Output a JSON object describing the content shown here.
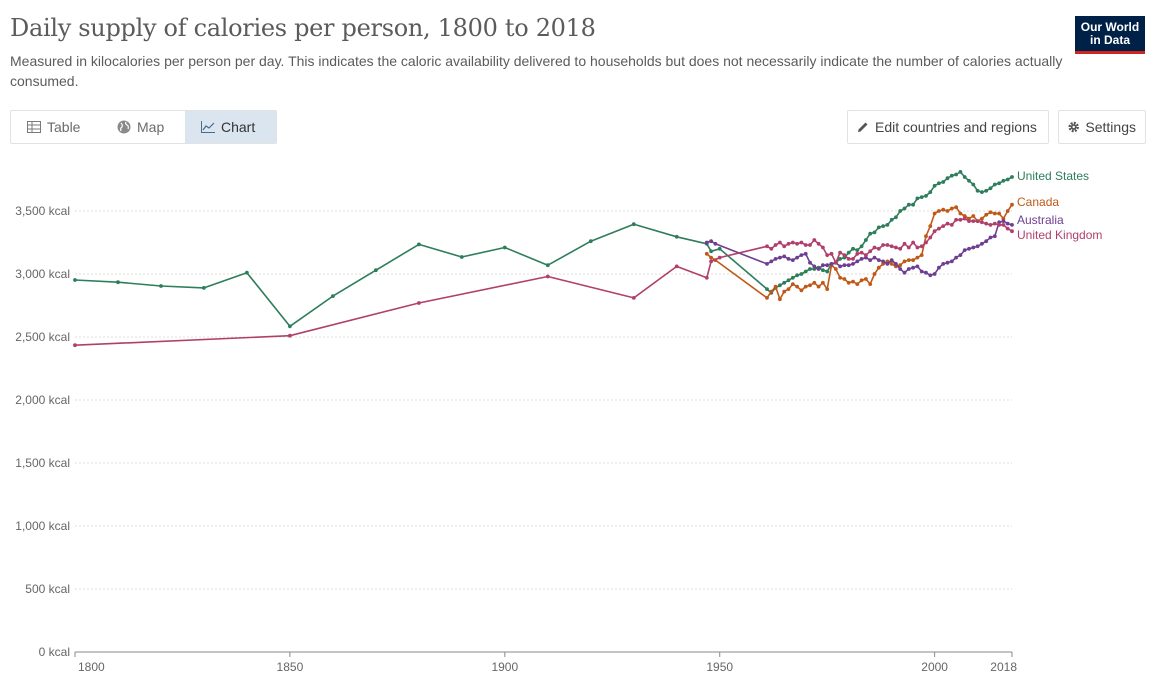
{
  "header": {
    "title": "Daily supply of calories per person, 1800 to 2018",
    "subtitle": "Measured in kilocalories per person per day. This indicates the caloric availability delivered to households but does not necessarily indicate the number of calories actually consumed.",
    "logo_line1": "Our World",
    "logo_line2": "in Data"
  },
  "tabs": [
    {
      "label": "Table",
      "icon": "table-icon"
    },
    {
      "label": "Map",
      "icon": "globe-icon"
    },
    {
      "label": "Chart",
      "icon": "line-chart-icon",
      "active": true
    }
  ],
  "toolbar": {
    "edit_label": "Edit countries and regions",
    "settings_label": "Settings"
  },
  "chart_data": {
    "type": "line",
    "title": "Daily supply of calories per person, 1800 to 2018",
    "xlabel": "",
    "ylabel": "",
    "xlim": [
      1800,
      2018
    ],
    "ylim": [
      0,
      3800
    ],
    "y_ticks": [
      0,
      500,
      1000,
      1500,
      2000,
      2500,
      3000,
      3500
    ],
    "y_tick_labels": [
      "0 kcal",
      "500 kcal",
      "1,000 kcal",
      "1,500 kcal",
      "2,000 kcal",
      "2,500 kcal",
      "3,000 kcal",
      "3,500 kcal"
    ],
    "x_ticks": [
      1800,
      1850,
      1900,
      1950,
      2000,
      2018
    ],
    "x_tick_labels": [
      "1800",
      "1850",
      "1900",
      "1950",
      "2000",
      "2018"
    ],
    "grid": "horizontal dotted",
    "legend": "right, line-end labels",
    "series": [
      {
        "name": "United States",
        "color": "#2e7d5b",
        "points": [
          [
            1800,
            2952
          ],
          [
            1810,
            2935
          ],
          [
            1820,
            2905
          ],
          [
            1830,
            2890
          ],
          [
            1840,
            3010
          ],
          [
            1850,
            2585
          ],
          [
            1860,
            2825
          ],
          [
            1870,
            3030
          ],
          [
            1880,
            3235
          ],
          [
            1890,
            3135
          ],
          [
            1900,
            3210
          ],
          [
            1910,
            3070
          ],
          [
            1920,
            3260
          ],
          [
            1930,
            3395
          ],
          [
            1940,
            3295
          ],
          [
            1947,
            3240
          ],
          [
            1948,
            3180
          ],
          [
            1950,
            3200
          ],
          [
            1961,
            2880
          ],
          [
            1962,
            2850
          ],
          [
            1963,
            2890
          ],
          [
            1964,
            2910
          ],
          [
            1965,
            2930
          ],
          [
            1966,
            2950
          ],
          [
            1967,
            2970
          ],
          [
            1968,
            2990
          ],
          [
            1969,
            3000
          ],
          [
            1970,
            3020
          ],
          [
            1971,
            3040
          ],
          [
            1972,
            3040
          ],
          [
            1973,
            3050
          ],
          [
            1974,
            3030
          ],
          [
            1975,
            3020
          ],
          [
            1976,
            3080
          ],
          [
            1977,
            3090
          ],
          [
            1978,
            3120
          ],
          [
            1979,
            3130
          ],
          [
            1980,
            3170
          ],
          [
            1981,
            3200
          ],
          [
            1982,
            3190
          ],
          [
            1983,
            3220
          ],
          [
            1984,
            3270
          ],
          [
            1985,
            3320
          ],
          [
            1986,
            3330
          ],
          [
            1987,
            3370
          ],
          [
            1988,
            3380
          ],
          [
            1989,
            3390
          ],
          [
            1990,
            3430
          ],
          [
            1991,
            3450
          ],
          [
            1992,
            3500
          ],
          [
            1993,
            3520
          ],
          [
            1994,
            3550
          ],
          [
            1995,
            3550
          ],
          [
            1996,
            3600
          ],
          [
            1997,
            3610
          ],
          [
            1998,
            3620
          ],
          [
            1999,
            3650
          ],
          [
            2000,
            3700
          ],
          [
            2001,
            3720
          ],
          [
            2002,
            3730
          ],
          [
            2003,
            3760
          ],
          [
            2004,
            3780
          ],
          [
            2005,
            3790
          ],
          [
            2006,
            3810
          ],
          [
            2007,
            3770
          ],
          [
            2008,
            3740
          ],
          [
            2009,
            3710
          ],
          [
            2010,
            3660
          ],
          [
            2011,
            3650
          ],
          [
            2012,
            3660
          ],
          [
            2013,
            3680
          ],
          [
            2014,
            3710
          ],
          [
            2015,
            3720
          ],
          [
            2016,
            3740
          ],
          [
            2017,
            3750
          ],
          [
            2018,
            3770
          ]
        ]
      },
      {
        "name": "Canada",
        "color": "#c05917",
        "points": [
          [
            1947,
            3160
          ],
          [
            1948,
            3130
          ],
          [
            1949,
            3110
          ],
          [
            1961,
            2810
          ],
          [
            1962,
            2860
          ],
          [
            1963,
            2900
          ],
          [
            1964,
            2800
          ],
          [
            1965,
            2860
          ],
          [
            1966,
            2880
          ],
          [
            1967,
            2920
          ],
          [
            1968,
            2900
          ],
          [
            1969,
            2870
          ],
          [
            1970,
            2900
          ],
          [
            1971,
            2910
          ],
          [
            1972,
            2930
          ],
          [
            1973,
            2900
          ],
          [
            1974,
            2930
          ],
          [
            1975,
            2880
          ],
          [
            1976,
            3070
          ],
          [
            1977,
            3040
          ],
          [
            1978,
            2970
          ],
          [
            1979,
            2960
          ],
          [
            1980,
            2930
          ],
          [
            1981,
            2940
          ],
          [
            1982,
            2920
          ],
          [
            1983,
            2950
          ],
          [
            1984,
            2960
          ],
          [
            1985,
            2920
          ],
          [
            1986,
            3000
          ],
          [
            1987,
            3050
          ],
          [
            1988,
            3080
          ],
          [
            1989,
            3100
          ],
          [
            1990,
            3080
          ],
          [
            1991,
            3060
          ],
          [
            1992,
            3070
          ],
          [
            1993,
            3100
          ],
          [
            1994,
            3110
          ],
          [
            1995,
            3110
          ],
          [
            1996,
            3130
          ],
          [
            1997,
            3150
          ],
          [
            1998,
            3300
          ],
          [
            1999,
            3380
          ],
          [
            2000,
            3480
          ],
          [
            2001,
            3500
          ],
          [
            2002,
            3510
          ],
          [
            2003,
            3500
          ],
          [
            2004,
            3520
          ],
          [
            2005,
            3530
          ],
          [
            2006,
            3480
          ],
          [
            2007,
            3460
          ],
          [
            2008,
            3440
          ],
          [
            2009,
            3460
          ],
          [
            2010,
            3420
          ],
          [
            2011,
            3440
          ],
          [
            2012,
            3470
          ],
          [
            2013,
            3490
          ],
          [
            2014,
            3480
          ],
          [
            2015,
            3480
          ],
          [
            2016,
            3440
          ],
          [
            2017,
            3500
          ],
          [
            2018,
            3550
          ]
        ]
      },
      {
        "name": "Australia",
        "color": "#6d3e91",
        "points": [
          [
            1947,
            3250
          ],
          [
            1948,
            3260
          ],
          [
            1949,
            3240
          ],
          [
            1961,
            3080
          ],
          [
            1962,
            3100
          ],
          [
            1963,
            3120
          ],
          [
            1964,
            3130
          ],
          [
            1965,
            3140
          ],
          [
            1966,
            3120
          ],
          [
            1967,
            3110
          ],
          [
            1968,
            3130
          ],
          [
            1969,
            3150
          ],
          [
            1970,
            3160
          ],
          [
            1971,
            3090
          ],
          [
            1972,
            3060
          ],
          [
            1973,
            3040
          ],
          [
            1974,
            3070
          ],
          [
            1975,
            3070
          ],
          [
            1976,
            3080
          ],
          [
            1977,
            3090
          ],
          [
            1978,
            3060
          ],
          [
            1979,
            3070
          ],
          [
            1980,
            3070
          ],
          [
            1981,
            3080
          ],
          [
            1982,
            3100
          ],
          [
            1983,
            3120
          ],
          [
            1984,
            3130
          ],
          [
            1985,
            3110
          ],
          [
            1986,
            3130
          ],
          [
            1987,
            3110
          ],
          [
            1988,
            3100
          ],
          [
            1989,
            3080
          ],
          [
            1990,
            3110
          ],
          [
            1991,
            3080
          ],
          [
            1992,
            3040
          ],
          [
            1993,
            3010
          ],
          [
            1994,
            3040
          ],
          [
            1995,
            3050
          ],
          [
            1996,
            3060
          ],
          [
            1997,
            3020
          ],
          [
            1998,
            3010
          ],
          [
            1999,
            2990
          ],
          [
            2000,
            3000
          ],
          [
            2001,
            3050
          ],
          [
            2002,
            3080
          ],
          [
            2003,
            3090
          ],
          [
            2004,
            3100
          ],
          [
            2005,
            3130
          ],
          [
            2006,
            3150
          ],
          [
            2007,
            3190
          ],
          [
            2008,
            3200
          ],
          [
            2009,
            3210
          ],
          [
            2010,
            3220
          ],
          [
            2011,
            3240
          ],
          [
            2012,
            3260
          ],
          [
            2013,
            3290
          ],
          [
            2014,
            3300
          ],
          [
            2015,
            3410
          ],
          [
            2016,
            3420
          ],
          [
            2017,
            3400
          ],
          [
            2018,
            3390
          ]
        ]
      },
      {
        "name": "United Kingdom",
        "color": "#b13f6b",
        "points": [
          [
            1800,
            2435
          ],
          [
            1850,
            2510
          ],
          [
            1880,
            2770
          ],
          [
            1910,
            2980
          ],
          [
            1930,
            2810
          ],
          [
            1940,
            3060
          ],
          [
            1947,
            2970
          ],
          [
            1948,
            3100
          ],
          [
            1950,
            3130
          ],
          [
            1961,
            3220
          ],
          [
            1962,
            3200
          ],
          [
            1963,
            3230
          ],
          [
            1964,
            3250
          ],
          [
            1965,
            3220
          ],
          [
            1966,
            3240
          ],
          [
            1967,
            3250
          ],
          [
            1968,
            3240
          ],
          [
            1969,
            3250
          ],
          [
            1970,
            3230
          ],
          [
            1971,
            3230
          ],
          [
            1972,
            3270
          ],
          [
            1973,
            3240
          ],
          [
            1974,
            3210
          ],
          [
            1975,
            3150
          ],
          [
            1976,
            3160
          ],
          [
            1977,
            3090
          ],
          [
            1978,
            3170
          ],
          [
            1979,
            3150
          ],
          [
            1980,
            3120
          ],
          [
            1981,
            3120
          ],
          [
            1982,
            3160
          ],
          [
            1983,
            3170
          ],
          [
            1984,
            3150
          ],
          [
            1985,
            3180
          ],
          [
            1986,
            3210
          ],
          [
            1987,
            3200
          ],
          [
            1988,
            3230
          ],
          [
            1989,
            3230
          ],
          [
            1990,
            3220
          ],
          [
            1991,
            3210
          ],
          [
            1992,
            3200
          ],
          [
            1993,
            3240
          ],
          [
            1994,
            3210
          ],
          [
            1995,
            3250
          ],
          [
            1996,
            3210
          ],
          [
            1997,
            3220
          ],
          [
            1998,
            3250
          ],
          [
            1999,
            3290
          ],
          [
            2000,
            3340
          ],
          [
            2001,
            3360
          ],
          [
            2002,
            3380
          ],
          [
            2003,
            3400
          ],
          [
            2004,
            3390
          ],
          [
            2005,
            3430
          ],
          [
            2006,
            3430
          ],
          [
            2007,
            3440
          ],
          [
            2008,
            3420
          ],
          [
            2009,
            3420
          ],
          [
            2010,
            3420
          ],
          [
            2011,
            3410
          ],
          [
            2012,
            3400
          ],
          [
            2013,
            3390
          ],
          [
            2014,
            3400
          ],
          [
            2015,
            3390
          ],
          [
            2016,
            3390
          ],
          [
            2017,
            3360
          ],
          [
            2018,
            3340
          ]
        ]
      }
    ]
  }
}
